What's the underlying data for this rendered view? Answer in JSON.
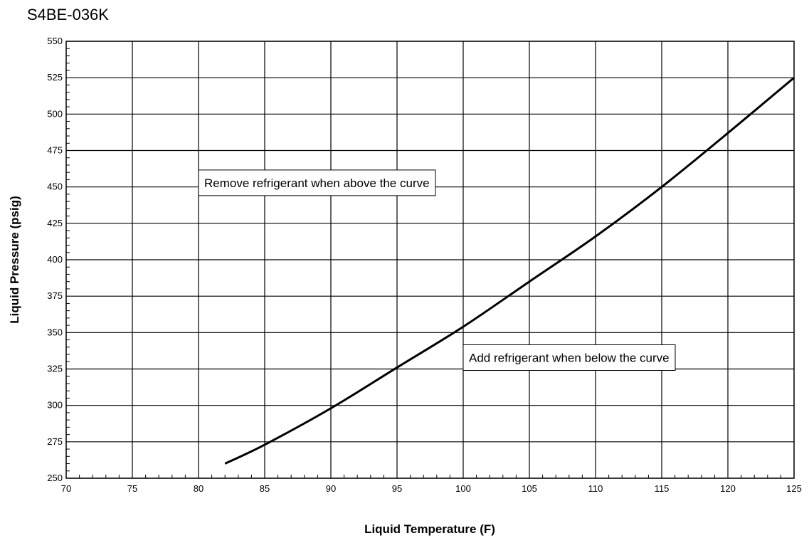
{
  "chart_data": {
    "type": "line",
    "title": "S4BE-036K",
    "xlabel": "Liquid Temperature (F)",
    "ylabel": "Liquid Pressure (psig)",
    "xlim": [
      70,
      125
    ],
    "ylim": [
      250,
      550
    ],
    "x_ticks": [
      70,
      75,
      80,
      85,
      90,
      95,
      100,
      105,
      110,
      115,
      120,
      125
    ],
    "y_ticks": [
      250,
      275,
      300,
      325,
      350,
      375,
      400,
      425,
      450,
      475,
      500,
      525,
      550
    ],
    "x_minor_step": 1,
    "y_minor_step": 5,
    "grid": true,
    "series": [
      {
        "x": [
          82,
          85,
          90,
          95,
          100,
          105,
          110,
          115,
          120,
          125
        ],
        "y": [
          260,
          273,
          298,
          326,
          354,
          385,
          416,
          450,
          487,
          525
        ],
        "color": "#000000"
      }
    ],
    "annotations": [
      {
        "text": "Remove refrigerant when above the curve",
        "x": 80,
        "y": 445
      },
      {
        "text": "Add refrigerant when below the curve",
        "x": 100,
        "y": 325
      }
    ]
  }
}
